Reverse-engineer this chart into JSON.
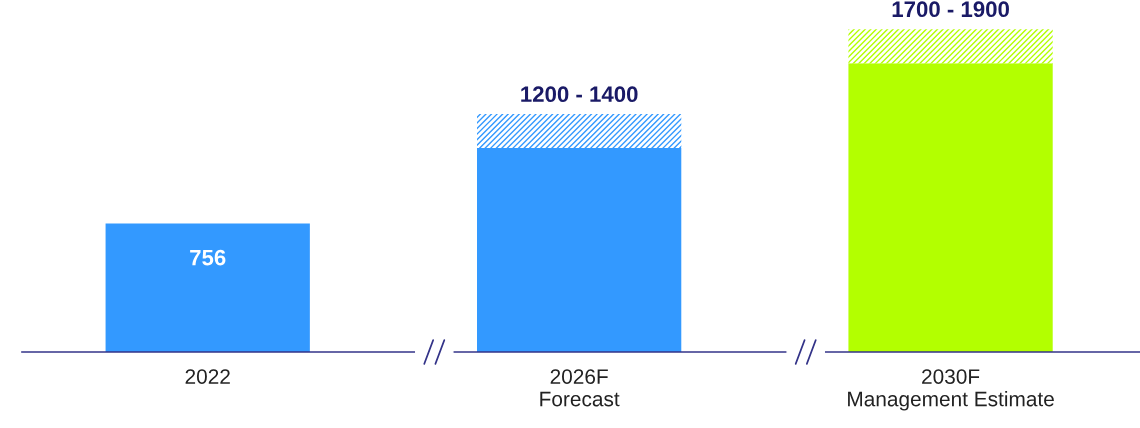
{
  "chart_data": {
    "type": "bar",
    "categories": [
      "2022",
      "2026F\nForecast",
      "2030F\nManagement Estimate"
    ],
    "stacked": true,
    "tick_labels": "x",
    "grid": false,
    "legend": false,
    "series": [
      {
        "colors": [
          "#3399ff",
          "#3399ff",
          "#b3ff00"
        ],
        "values": [
          756,
          1200,
          1700
        ],
        "value_labels": [
          "756",
          null,
          null
        ]
      },
      {
        "colors": [
          "#3399ff",
          "#3399ff",
          "#b3ff00"
        ],
        "values": [
          null,
          200,
          200
        ]
      }
    ],
    "totals": [
      null,
      "1200 - 1400",
      "1700 - 1900"
    ]
  }
}
